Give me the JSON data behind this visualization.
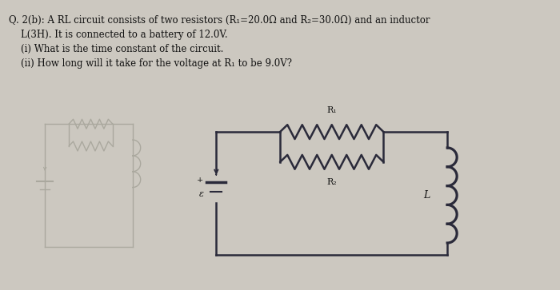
{
  "background_color": "#ccc8c0",
  "text_color": "#111111",
  "line1": "Q. 2(b): A RL circuit consists of two resistors (R₁=20.0Ω and R₂=30.0Ω) and an inductor",
  "line2": "    L(3H). It is connected to a battery of 12.0V.",
  "line3": "    (i) What is the time constant of the circuit.",
  "line4": "    (ii) How long will it take for the voltage at R₁ to be 9.0V?",
  "circuit_color": "#2a2a3a",
  "ghost_color": "#aaa89e",
  "lw_main": 1.8,
  "lw_ghost": 1.0,
  "font_size_text": 8.5,
  "font_size_label": 8.0
}
